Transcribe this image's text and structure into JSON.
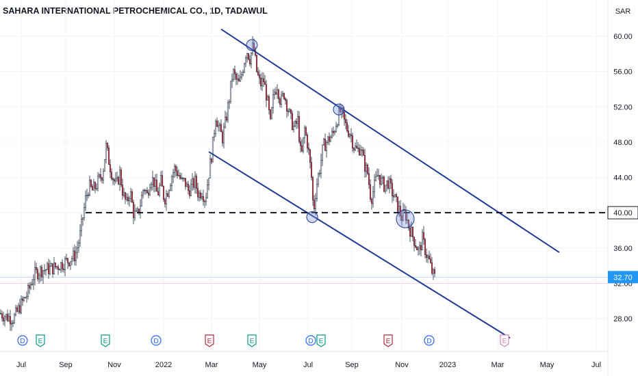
{
  "header": {
    "title": "SAHARA INTERNATIONAL PETROCHEMICAL CO., 1D, TADAWUL",
    "currency": "SAR"
  },
  "chart_data": {
    "type": "candlestick",
    "title": "SAHARA INTERNATIONAL PETROCHEMICAL CO., 1D, TADAWUL",
    "ylabel": "SAR",
    "ylim": [
      25.5,
      62
    ],
    "y_ticks": [
      28,
      32,
      36,
      40,
      44,
      48,
      52,
      56,
      60
    ],
    "y_tick_labels": [
      "28.00",
      "32.00",
      "36.00",
      "40.00",
      "44.00",
      "48.00",
      "52.00",
      "56.00",
      "60.00"
    ],
    "x_tick_labels": [
      "Jul",
      "Sep",
      "Nov",
      "2022",
      "Mar",
      "May",
      "Jul",
      "Sep",
      "Nov",
      "2023",
      "Mar",
      "May",
      "Jul"
    ],
    "last_price": 32.7,
    "last_price_label": "32.70",
    "support_level": 40.0,
    "support_label": "40.00",
    "price_path": [
      [
        0,
        28.6
      ],
      [
        10,
        28.2
      ],
      [
        20,
        28.0
      ],
      [
        30,
        29.5
      ],
      [
        40,
        30.8
      ],
      [
        50,
        33.0
      ],
      [
        60,
        33.5
      ],
      [
        70,
        33.6
      ],
      [
        80,
        33.8
      ],
      [
        90,
        34.2
      ],
      [
        100,
        34.6
      ],
      [
        110,
        35.2
      ],
      [
        116,
        37.0
      ],
      [
        120,
        39.0
      ],
      [
        125,
        41.5
      ],
      [
        130,
        43.0
      ],
      [
        135,
        42.5
      ],
      [
        140,
        43.0
      ],
      [
        145,
        43.8
      ],
      [
        150,
        44.5
      ],
      [
        155,
        47.5
      ],
      [
        160,
        45.5
      ],
      [
        165,
        44.0
      ],
      [
        170,
        43.0
      ],
      [
        175,
        44.5
      ],
      [
        180,
        42.0
      ],
      [
        185,
        41.0
      ],
      [
        190,
        42.5
      ],
      [
        195,
        40.0
      ],
      [
        200,
        39.5
      ],
      [
        205,
        41.0
      ],
      [
        210,
        43.0
      ],
      [
        215,
        42.0
      ],
      [
        220,
        44.0
      ],
      [
        225,
        43.5
      ],
      [
        230,
        42.0
      ],
      [
        235,
        43.5
      ],
      [
        240,
        41.5
      ],
      [
        245,
        42.5
      ],
      [
        250,
        44.0
      ],
      [
        255,
        45.0
      ],
      [
        260,
        44.5
      ],
      [
        265,
        43.5
      ],
      [
        270,
        43.5
      ],
      [
        275,
        42.5
      ],
      [
        280,
        43.0
      ],
      [
        285,
        43.5
      ],
      [
        290,
        42.0
      ],
      [
        295,
        42.5
      ],
      [
        300,
        41.5
      ],
      [
        305,
        44.5
      ],
      [
        310,
        47.0
      ],
      [
        315,
        51.0
      ],
      [
        320,
        49.5
      ],
      [
        325,
        48.5
      ],
      [
        330,
        50.5
      ],
      [
        335,
        53.0
      ],
      [
        340,
        56.0
      ],
      [
        345,
        55.0
      ],
      [
        350,
        54.5
      ],
      [
        355,
        56.5
      ],
      [
        360,
        58.5
      ],
      [
        365,
        57.5
      ],
      [
        370,
        59.0
      ],
      [
        375,
        56.0
      ],
      [
        380,
        54.5
      ],
      [
        385,
        55.0
      ],
      [
        390,
        53.0
      ],
      [
        395,
        50.0
      ],
      [
        400,
        53.5
      ],
      [
        405,
        54.5
      ],
      [
        410,
        52.5
      ],
      [
        415,
        53.5
      ],
      [
        420,
        52.0
      ],
      [
        425,
        50.5
      ],
      [
        430,
        49.5
      ],
      [
        435,
        50.5
      ],
      [
        440,
        46.0
      ],
      [
        445,
        49.5
      ],
      [
        450,
        47.5
      ],
      [
        455,
        44.0
      ],
      [
        458,
        40.0
      ],
      [
        462,
        43.0
      ],
      [
        467,
        45.0
      ],
      [
        472,
        47.5
      ],
      [
        477,
        48.0
      ],
      [
        482,
        48.5
      ],
      [
        487,
        49.0
      ],
      [
        492,
        50.5
      ],
      [
        497,
        51.5
      ],
      [
        502,
        50.5
      ],
      [
        507,
        49.5
      ],
      [
        512,
        49.0
      ],
      [
        517,
        47.5
      ],
      [
        522,
        47.0
      ],
      [
        527,
        47.5
      ],
      [
        532,
        45.5
      ],
      [
        537,
        44.5
      ],
      [
        542,
        41.5
      ],
      [
        547,
        43.0
      ],
      [
        552,
        44.5
      ],
      [
        557,
        43.5
      ],
      [
        562,
        43.0
      ],
      [
        567,
        43.5
      ],
      [
        572,
        42.5
      ],
      [
        577,
        41.5
      ],
      [
        582,
        40.5
      ],
      [
        587,
        39.5
      ],
      [
        592,
        40.0
      ],
      [
        597,
        38.5
      ],
      [
        602,
        37.5
      ],
      [
        607,
        36.5
      ],
      [
        612,
        35.5
      ],
      [
        617,
        37.0
      ],
      [
        622,
        35.5
      ],
      [
        627,
        34.5
      ],
      [
        632,
        33.0
      ],
      [
        635,
        32.7
      ]
    ],
    "upper_channel": [
      [
        323,
        60.8
      ],
      [
        817,
        35.5
      ]
    ],
    "lower_channel": [
      [
        305,
        46.9
      ],
      [
        745,
        25.8
      ]
    ],
    "highlight_circles": [
      [
        368,
        59.0
      ],
      [
        495,
        51.7
      ],
      [
        456,
        39.5
      ],
      [
        592,
        39.3
      ]
    ]
  },
  "events": [
    {
      "x": 33,
      "type": "D"
    },
    {
      "x": 59,
      "type": "E"
    },
    {
      "x": 154,
      "type": "E"
    },
    {
      "x": 228,
      "type": "D"
    },
    {
      "x": 306,
      "type": "E"
    },
    {
      "x": 368,
      "type": "E"
    },
    {
      "x": 454,
      "type": "D"
    },
    {
      "x": 469,
      "type": "E"
    },
    {
      "x": 567,
      "type": "E"
    },
    {
      "x": 627,
      "type": "D"
    },
    {
      "x": 737,
      "type": "E"
    }
  ],
  "colors": {
    "up": "#089981",
    "down": "#f23645",
    "candle": "#1e2a3a",
    "channel": "#1f3a93",
    "dashed": "#131722",
    "grid": "#f0f3fa",
    "price_badge": "#2196f3",
    "event_earnings_blue": "#089981",
    "event_earnings_red": "#b2283b",
    "event_earnings_future": "#d084b0",
    "event_dividend": "#2962ff"
  }
}
